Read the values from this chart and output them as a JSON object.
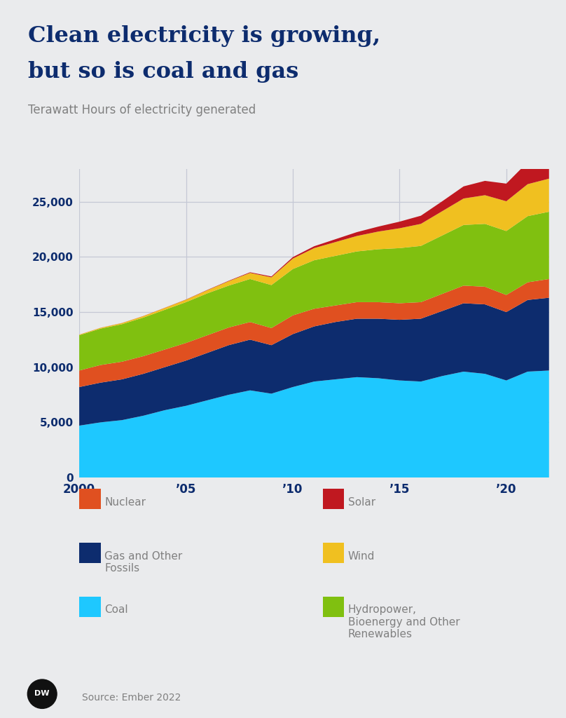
{
  "title_line1": "Clean electricity is growing,",
  "title_line2": "but so is coal and gas",
  "subtitle": "Terawatt Hours of electricity generated",
  "source": "Source: Ember 2022",
  "background_color": "#eaebed",
  "title_color": "#0d2c6e",
  "subtitle_color": "#808080",
  "axis_color": "#0d2c6e",
  "tick_color": "#0d2c6e",
  "grid_color": "#c5c8d5",
  "years": [
    2000,
    2001,
    2002,
    2003,
    2004,
    2005,
    2006,
    2007,
    2008,
    2009,
    2010,
    2011,
    2012,
    2013,
    2014,
    2015,
    2016,
    2017,
    2018,
    2019,
    2020,
    2021,
    2022
  ],
  "coal": [
    4700,
    5000,
    5200,
    5600,
    6100,
    6500,
    7000,
    7500,
    7900,
    7600,
    8200,
    8700,
    8900,
    9100,
    9000,
    8800,
    8700,
    9200,
    9600,
    9400,
    8800,
    9600,
    9700
  ],
  "gas_fossils": [
    3500,
    3600,
    3700,
    3800,
    3900,
    4100,
    4300,
    4500,
    4600,
    4400,
    4800,
    5000,
    5200,
    5300,
    5400,
    5500,
    5700,
    5900,
    6200,
    6300,
    6200,
    6500,
    6600
  ],
  "nuclear": [
    1500,
    1600,
    1600,
    1600,
    1600,
    1600,
    1600,
    1600,
    1600,
    1550,
    1700,
    1600,
    1500,
    1500,
    1500,
    1500,
    1500,
    1550,
    1600,
    1600,
    1550,
    1600,
    1700
  ],
  "hydro_bio": [
    3200,
    3300,
    3400,
    3500,
    3600,
    3700,
    3800,
    3800,
    3900,
    3900,
    4200,
    4400,
    4500,
    4600,
    4800,
    5000,
    5100,
    5300,
    5500,
    5700,
    5800,
    6000,
    6100
  ],
  "wind": [
    50,
    70,
    100,
    130,
    170,
    220,
    280,
    400,
    550,
    700,
    950,
    1100,
    1250,
    1400,
    1600,
    1800,
    2000,
    2200,
    2400,
    2600,
    2700,
    2900,
    3000
  ],
  "solar": [
    5,
    7,
    9,
    12,
    15,
    20,
    30,
    40,
    60,
    80,
    130,
    170,
    260,
    350,
    450,
    600,
    740,
    900,
    1100,
    1300,
    1600,
    2000,
    2400
  ],
  "colors": {
    "coal": "#1ec8ff",
    "gas_fossils": "#0d2c6e",
    "nuclear": "#e05020",
    "hydro_bio": "#80c010",
    "wind": "#f0c020",
    "solar": "#c01820"
  },
  "ylim": [
    0,
    28000
  ],
  "yticks": [
    0,
    5000,
    10000,
    15000,
    20000,
    25000
  ],
  "xtick_positions": [
    2000,
    2005,
    2010,
    2015,
    2020
  ],
  "xtick_labels": [
    "2000",
    "’05",
    "’10",
    "’15",
    "’20"
  ],
  "legend": [
    {
      "label": "Nuclear",
      "color": "#e05020",
      "col": 0,
      "row": 0
    },
    {
      "label": "Gas and Other\nFossils",
      "color": "#0d2c6e",
      "col": 0,
      "row": 1
    },
    {
      "label": "Coal",
      "color": "#1ec8ff",
      "col": 0,
      "row": 2
    },
    {
      "label": "Solar",
      "color": "#c01820",
      "col": 1,
      "row": 0
    },
    {
      "label": "Wind",
      "color": "#f0c020",
      "col": 1,
      "row": 1
    },
    {
      "label": "Hydropower,\nBioenergy and Other\nRenewables",
      "color": "#80c010",
      "col": 1,
      "row": 2
    }
  ]
}
